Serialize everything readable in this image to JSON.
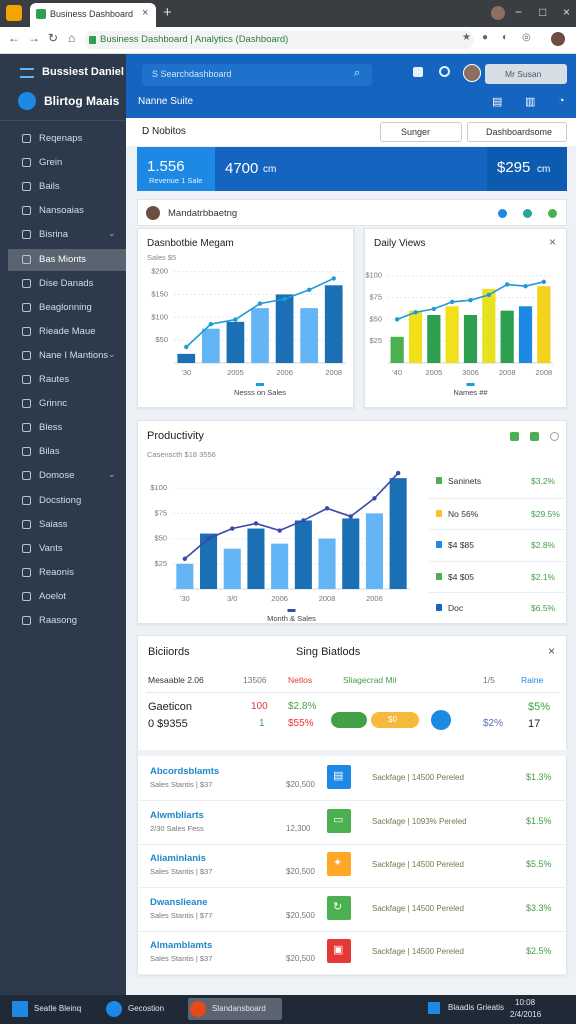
{
  "browser": {
    "tab_title": "Business Dashboard",
    "url": "Business Dashboard | Analytics (Dashboard)"
  },
  "sidebar": {
    "brand": "Bussiest Daniel",
    "app": "Blirtog Maais",
    "items": [
      {
        "label": "Reqenaps"
      },
      {
        "label": "Grein"
      },
      {
        "label": "Bails"
      },
      {
        "label": "Nansoaias"
      },
      {
        "label": "Bisrina",
        "expandable": true
      },
      {
        "label": "Bas Mionts",
        "active": true
      },
      {
        "label": "Dise Danads"
      },
      {
        "label": "Beaglonning"
      },
      {
        "label": "Rieade Maue"
      },
      {
        "label": "Nane I Mantions",
        "expandable": true
      },
      {
        "label": "Rautes"
      },
      {
        "label": "Grinnc"
      },
      {
        "label": "Bless"
      },
      {
        "label": "Bilas"
      },
      {
        "label": "Domose",
        "expandable": true
      },
      {
        "label": "Docstiong"
      },
      {
        "label": "Saiass"
      },
      {
        "label": "Vants"
      },
      {
        "label": "Reaonis"
      },
      {
        "label": "Aoelot"
      },
      {
        "label": "Raasong"
      }
    ]
  },
  "header": {
    "search": "S Searchdashboard",
    "subtitle": "Nanne Suite",
    "user": "Mr Susan"
  },
  "toolbar": {
    "title": "D Nobitos",
    "select": "Sunger",
    "button": "Dashboardsome"
  },
  "kpis": [
    {
      "value": "1.556",
      "label": "Revenue 1 Sale"
    },
    {
      "value": "4700",
      "unit": "cm"
    },
    {
      "value": "$295",
      "unit": "cm"
    }
  ],
  "panel": {
    "title": "Mandatrbbaetng"
  },
  "charts": [
    {
      "type": "bar",
      "title": "Dasnbotbie Megam",
      "subtitle": "Sales $5",
      "x_title": "Nesss on Sales",
      "categories": [
        "'30",
        null,
        "2005",
        null,
        "2006",
        null,
        "2008"
      ],
      "bars": {
        "values": [
          20,
          75,
          90,
          120,
          150,
          120,
          170
        ],
        "colors": [
          "#1a6fb5",
          "#64b5f6",
          "#1a6fb5",
          "#64b5f6",
          "#1a6fb5",
          "#64b5f6",
          "#1a6fb5"
        ]
      },
      "line": {
        "values": [
          35,
          85,
          95,
          130,
          140,
          160,
          185
        ],
        "color": "#1e9ad6"
      },
      "ylim": [
        0,
        210
      ],
      "yticks": [
        {
          "value": 50,
          "label": "$50"
        },
        {
          "value": 100,
          "label": "$100"
        },
        {
          "value": 150,
          "label": "$150"
        },
        {
          "value": 200,
          "label": "$200"
        }
      ],
      "grid": true
    },
    {
      "type": "bar",
      "title": "Daily Views",
      "x_title": "Names ##",
      "categories": [
        "'40",
        null,
        "2005",
        null,
        "3006",
        null,
        "2008",
        null,
        "2008"
      ],
      "bars": {
        "values": [
          30,
          60,
          55,
          65,
          55,
          85,
          60,
          65,
          88
        ],
        "colors": [
          "#4caf50",
          "#f2e01a",
          "#2e9e4f",
          "#f2e01a",
          "#2e9e4f",
          "#e8e21e",
          "#2e9e4f",
          "#1e88e5",
          "#f2d21a"
        ]
      },
      "line": {
        "values": [
          50,
          58,
          62,
          70,
          72,
          78,
          90,
          88,
          93
        ],
        "color": "#1e9ad6"
      },
      "ylim": [
        0,
        110
      ],
      "yticks": [
        {
          "value": 25,
          "label": "$25"
        },
        {
          "value": 50,
          "label": "$50"
        },
        {
          "value": 75,
          "label": "$75"
        },
        {
          "value": 100,
          "label": "$100"
        }
      ],
      "grid": true
    },
    {
      "type": "bar",
      "title": "Productivity",
      "subtitle": "Casenscth $18 3556",
      "x_title": "Month & Sales",
      "categories": [
        "'30",
        null,
        "3/0",
        null,
        "2006",
        null,
        "2008",
        null,
        "2006",
        null
      ],
      "bars": {
        "values": [
          25,
          55,
          40,
          60,
          45,
          68,
          50,
          70,
          75,
          110
        ],
        "colors": [
          "#64b5f6",
          "#1a6fb5",
          "#64b5f6",
          "#1a6fb5",
          "#64b5f6",
          "#1a6fb5",
          "#64b5f6",
          "#1a6fb5",
          "#64b5f6",
          "#1a6fb5"
        ]
      },
      "line": {
        "values": [
          30,
          50,
          60,
          65,
          58,
          68,
          80,
          72,
          90,
          115
        ],
        "color": "#3949ab"
      },
      "ylim": [
        0,
        125
      ],
      "yticks": [
        {
          "value": 25,
          "label": "$25"
        },
        {
          "value": 50,
          "label": "$50"
        },
        {
          "value": 75,
          "label": "$75"
        },
        {
          "value": 100,
          "label": "$100"
        }
      ],
      "grid": true,
      "side": [
        {
          "label": "Saninets",
          "value": "$3.2%",
          "color": "#4caf50"
        },
        {
          "label": "No 56%",
          "value": "$29.5%",
          "color": "#fbc02d"
        },
        {
          "label": "$4 $85",
          "value": "$2.8%",
          "color": "#1e88e5"
        },
        {
          "label": "$4 $05",
          "value": "$2.1%",
          "color": "#4caf50"
        },
        {
          "label": "Doc",
          "value": "$6.5%",
          "color": "#1565c0"
        }
      ]
    }
  ],
  "table": {
    "title": "Biciiords",
    "subtitle": "Sing Biatlods",
    "columns": [
      "Mesaable 2.06",
      "13506",
      "Netlos",
      "Sliagecrad Mil",
      "1/5",
      "Raine"
    ],
    "summary": [
      [
        "Gaeticon",
        "100",
        "$2.8%",
        "$0",
        "$5%"
      ],
      [
        "0 $9355",
        "1",
        "$55%",
        "$2%",
        "17"
      ]
    ],
    "rows": [
      {
        "title": "Abcordsblamts",
        "subtitle": "Sales Stantis | $37",
        "amount": "$20,500",
        "icon_color": "#1e88e5",
        "detail": "Sackfage | 14500 Pereled",
        "change": "$1.3%"
      },
      {
        "title": "Alwmbliarts",
        "subtitle": "2/30 Sales Fess",
        "amount": "12,300",
        "icon_color": "#4caf50",
        "detail": "Sackfage | 1093% Pereled",
        "change": "$1.5%"
      },
      {
        "title": "Aliaminlanis",
        "subtitle": "Sales Stantis | $37",
        "amount": "$20,500",
        "icon_color": "#ffa726",
        "detail": "Sackfage | 14500 Pereled",
        "change": "$5.5%"
      },
      {
        "title": "Dwanslieane",
        "subtitle": "Sales Stantis | $77",
        "amount": "$20,500",
        "icon_color": "#4caf50",
        "detail": "Sackfage | 14500 Pereled",
        "change": "$3.3%"
      },
      {
        "title": "Almamblamts",
        "subtitle": "Sales Stantis | $37",
        "amount": "$20,500",
        "icon_color": "#e53935",
        "detail": "Sackfage | 14500 Pereled",
        "change": "$2.5%"
      }
    ]
  },
  "taskbar": {
    "items": [
      "Seatle Bleinq",
      "Gecostion",
      "Slandansboard"
    ],
    "right": "Blaadis Grieatis",
    "clock": "10:08",
    "date": "2/4/2016"
  }
}
